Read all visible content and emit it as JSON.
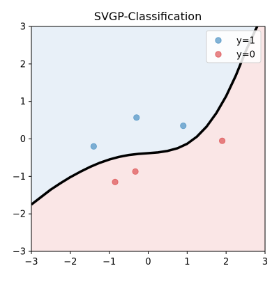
{
  "chart_data": {
    "type": "scatter",
    "title": "SVGP-Classification",
    "xlabel": "",
    "ylabel": "",
    "xlim": [
      -3,
      3
    ],
    "ylim": [
      -3,
      3
    ],
    "xticks": [
      -3,
      -2,
      -1,
      0,
      1,
      2,
      3
    ],
    "yticks": [
      -3,
      -2,
      -1,
      0,
      1,
      2,
      3
    ],
    "xtick_labels": [
      "−3",
      "−2",
      "−1",
      "0",
      "1",
      "2",
      "3"
    ],
    "ytick_labels": [
      "−3",
      "−2",
      "−1",
      "0",
      "1",
      "2",
      "3"
    ],
    "grid": false,
    "legend_position": "top-right",
    "series": [
      {
        "name": "y=1",
        "color": "#1f77b4",
        "points": [
          {
            "x": -1.4,
            "y": -0.2
          },
          {
            "x": -0.3,
            "y": 0.57
          },
          {
            "x": 0.9,
            "y": 0.35
          }
        ]
      },
      {
        "name": "y=0",
        "color": "#d62728",
        "points": [
          {
            "x": -0.85,
            "y": -1.15
          },
          {
            "x": -0.33,
            "y": -0.87
          },
          {
            "x": 1.9,
            "y": -0.05
          }
        ]
      }
    ],
    "decision_boundary": {
      "color": "#000000",
      "points": [
        {
          "x": -3.0,
          "y": -1.75
        },
        {
          "x": -2.75,
          "y": -1.55
        },
        {
          "x": -2.5,
          "y": -1.35
        },
        {
          "x": -2.25,
          "y": -1.18
        },
        {
          "x": -2.0,
          "y": -1.02
        },
        {
          "x": -1.75,
          "y": -0.88
        },
        {
          "x": -1.5,
          "y": -0.75
        },
        {
          "x": -1.25,
          "y": -0.64
        },
        {
          "x": -1.0,
          "y": -0.55
        },
        {
          "x": -0.75,
          "y": -0.48
        },
        {
          "x": -0.5,
          "y": -0.43
        },
        {
          "x": -0.25,
          "y": -0.4
        },
        {
          "x": 0.0,
          "y": -0.38
        },
        {
          "x": 0.25,
          "y": -0.36
        },
        {
          "x": 0.5,
          "y": -0.32
        },
        {
          "x": 0.75,
          "y": -0.25
        },
        {
          "x": 1.0,
          "y": -0.13
        },
        {
          "x": 1.25,
          "y": 0.06
        },
        {
          "x": 1.5,
          "y": 0.33
        },
        {
          "x": 1.75,
          "y": 0.69
        },
        {
          "x": 2.0,
          "y": 1.14
        },
        {
          "x": 2.25,
          "y": 1.69
        },
        {
          "x": 2.5,
          "y": 2.33
        },
        {
          "x": 2.75,
          "y": 2.9
        },
        {
          "x": 2.8,
          "y": 3.0
        }
      ]
    },
    "regions": {
      "above_color": "#e8f0f8",
      "below_color": "#fae6e6"
    }
  }
}
